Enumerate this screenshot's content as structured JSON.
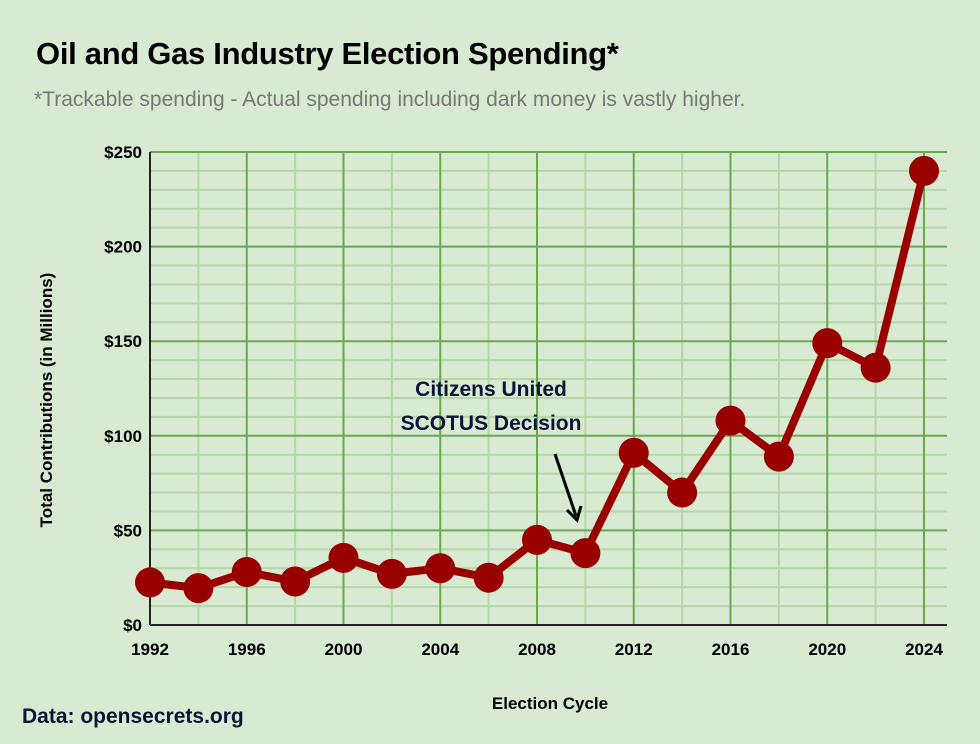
{
  "header": {
    "title": "Oil and Gas Industry Election Spending*",
    "subtitle": "*Trackable spending - Actual spending including dark money is vastly higher."
  },
  "footer": {
    "source": "Data: opensecrets.org"
  },
  "colors": {
    "background": "#d9ead3",
    "line": "#990000",
    "grid_major": "#6aa84f",
    "grid_minor": "#b6d7a8",
    "annotation": "#0b1436"
  },
  "chart_data": {
    "type": "line",
    "title": "Oil and Gas Industry Election Spending*",
    "subtitle": "*Trackable spending - Actual spending including dark money is vastly higher.",
    "xlabel": "Election Cycle",
    "ylabel": "Total Contributions (in Millions)",
    "x": [
      1992,
      1994,
      1996,
      1998,
      2000,
      2002,
      2004,
      2006,
      2008,
      2010,
      2012,
      2014,
      2016,
      2018,
      2020,
      2022,
      2024
    ],
    "series": [
      {
        "name": "Total Contributions",
        "values": [
          22.5,
          19.5,
          28,
          23,
          35.5,
          27,
          30,
          25,
          45,
          38,
          91,
          70,
          108,
          89,
          149,
          136,
          240
        ]
      }
    ],
    "xlim": [
      1992,
      2024
    ],
    "ylim": [
      0,
      250
    ],
    "x_ticks": [
      "1992",
      "1996",
      "2000",
      "2004",
      "2008",
      "2012",
      "2016",
      "2020",
      "2024"
    ],
    "y_ticks": [
      "$0",
      "$50",
      "$100",
      "$150",
      "$200",
      "$250"
    ],
    "grid": true,
    "legend": "none",
    "annotations": [
      {
        "text_lines": [
          "Citizens United",
          "SCOTUS Decision"
        ],
        "points_to": 2010
      }
    ]
  }
}
